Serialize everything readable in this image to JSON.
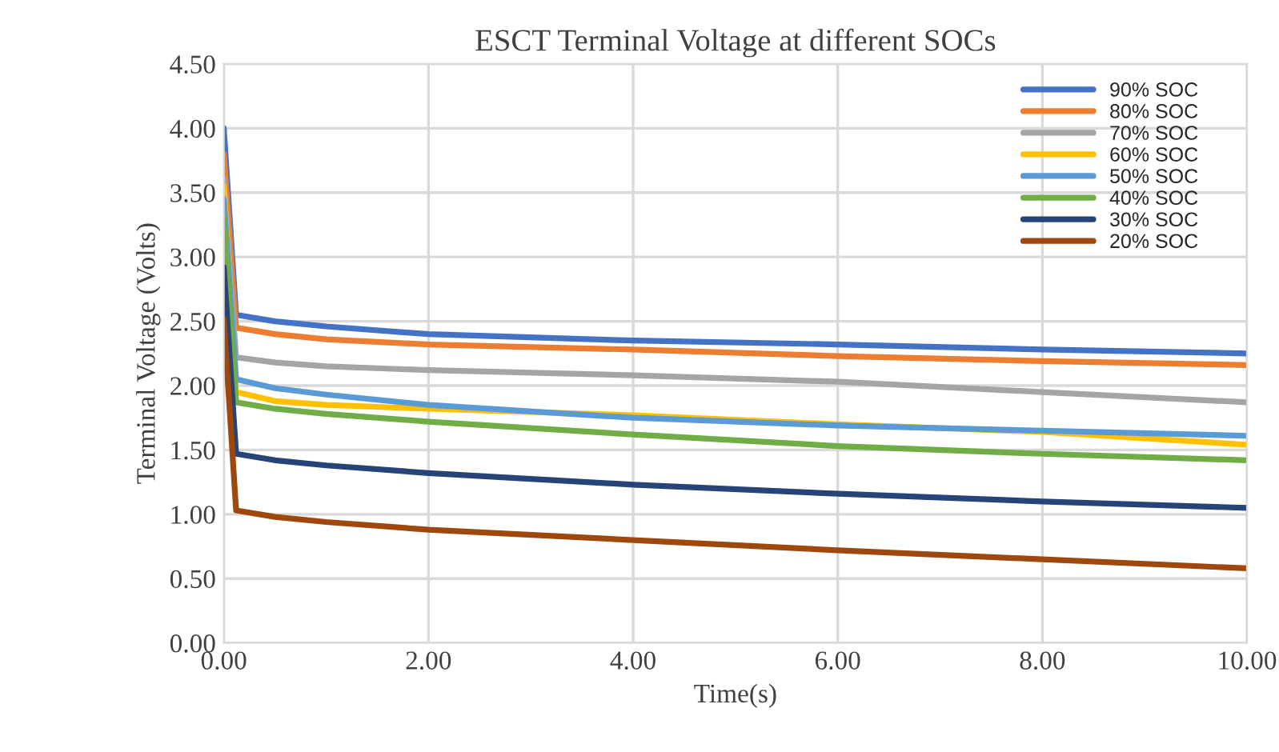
{
  "chart_data": {
    "type": "line",
    "title": "ESCT Terminal Voltage at different SOCs",
    "xlabel": "Time(s)",
    "ylabel": "Terminal Voltage (Volts)",
    "x": [
      0,
      0.12,
      0.5,
      1,
      2,
      4,
      6,
      8,
      10
    ],
    "xlim": [
      0,
      10
    ],
    "xticks": [
      {
        "value": 0,
        "label": "0.00"
      },
      {
        "value": 2,
        "label": "2.00"
      },
      {
        "value": 4,
        "label": "4.00"
      },
      {
        "value": 6,
        "label": "6.00"
      },
      {
        "value": 8,
        "label": "8.00"
      },
      {
        "value": 10,
        "label": "10.00"
      }
    ],
    "ylim": [
      0,
      4.5
    ],
    "yticks": [
      {
        "value": 0,
        "label": "0.00"
      },
      {
        "value": 0.5,
        "label": "0.50"
      },
      {
        "value": 1,
        "label": "1.00"
      },
      {
        "value": 1.5,
        "label": "1.50"
      },
      {
        "value": 2,
        "label": "2.00"
      },
      {
        "value": 2.5,
        "label": "2.50"
      },
      {
        "value": 3,
        "label": "3.00"
      },
      {
        "value": 3.5,
        "label": "3.50"
      },
      {
        "value": 4,
        "label": "4.00"
      },
      {
        "value": 4.5,
        "label": "4.50"
      }
    ],
    "grid": true,
    "legend": "top right",
    "marker": "none",
    "line_style": "solid",
    "series": [
      {
        "name": "90% SOC",
        "color": "#4472c4",
        "values": [
          4.0,
          2.55,
          2.5,
          2.46,
          2.4,
          2.35,
          2.32,
          2.28,
          2.25
        ]
      },
      {
        "name": "80% SOC",
        "color": "#ed7d31",
        "values": [
          3.8,
          2.45,
          2.4,
          2.36,
          2.32,
          2.28,
          2.23,
          2.19,
          2.16
        ]
      },
      {
        "name": "70% SOC",
        "color": "#a5a5a5",
        "values": [
          3.6,
          2.22,
          2.18,
          2.15,
          2.12,
          2.08,
          2.03,
          1.95,
          1.87
        ]
      },
      {
        "name": "60% SOC",
        "color": "#ffc000",
        "values": [
          3.55,
          1.95,
          1.88,
          1.85,
          1.82,
          1.77,
          1.7,
          1.64,
          1.54
        ]
      },
      {
        "name": "50% SOC",
        "color": "#5b9bd5",
        "values": [
          3.45,
          2.05,
          1.98,
          1.93,
          1.85,
          1.75,
          1.69,
          1.65,
          1.61
        ]
      },
      {
        "name": "40% SOC",
        "color": "#70ad47",
        "values": [
          3.3,
          1.87,
          1.82,
          1.78,
          1.72,
          1.62,
          1.53,
          1.47,
          1.42
        ]
      },
      {
        "name": "30% SOC",
        "color": "#264478",
        "values": [
          2.92,
          1.47,
          1.42,
          1.38,
          1.32,
          1.23,
          1.16,
          1.1,
          1.05
        ]
      },
      {
        "name": "20% SOC",
        "color": "#9e480e",
        "values": [
          2.52,
          1.03,
          0.98,
          0.94,
          0.88,
          0.8,
          0.72,
          0.65,
          0.58
        ]
      }
    ]
  }
}
